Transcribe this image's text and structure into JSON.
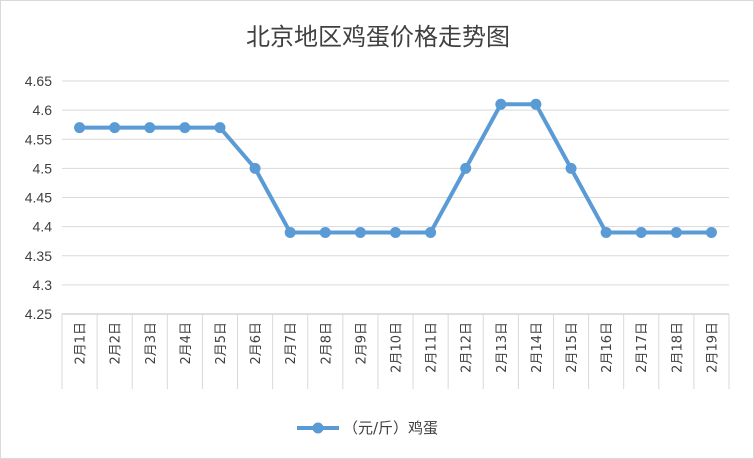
{
  "chart_data": {
    "type": "line",
    "title": "北京地区鸡蛋价格走势图",
    "xlabel": "",
    "ylabel": "",
    "categories": [
      "2月1日",
      "2月2日",
      "2月3日",
      "2月4日",
      "2月5日",
      "2月6日",
      "2月7日",
      "2月8日",
      "2月9日",
      "2月10日",
      "2月11日",
      "2月12日",
      "2月13日",
      "2月14日",
      "2月15日",
      "2月16日",
      "2月17日",
      "2月18日",
      "2月19日"
    ],
    "series": [
      {
        "name": "（元/斤）鸡蛋",
        "values": [
          4.57,
          4.57,
          4.57,
          4.57,
          4.57,
          4.5,
          4.39,
          4.39,
          4.39,
          4.39,
          4.39,
          4.5,
          4.61,
          4.61,
          4.5,
          4.39,
          4.39,
          4.39,
          4.39
        ]
      }
    ],
    "ylim": [
      4.25,
      4.65
    ],
    "yticks": [
      "4.25",
      "4.3",
      "4.35",
      "4.4",
      "4.45",
      "4.5",
      "4.55",
      "4.6",
      "4.65"
    ],
    "grid": true,
    "legend_position": "bottom",
    "colors": {
      "line": "#5b9bd5",
      "grid": "#d9d9d9",
      "axis": "#bfbfbf"
    }
  }
}
